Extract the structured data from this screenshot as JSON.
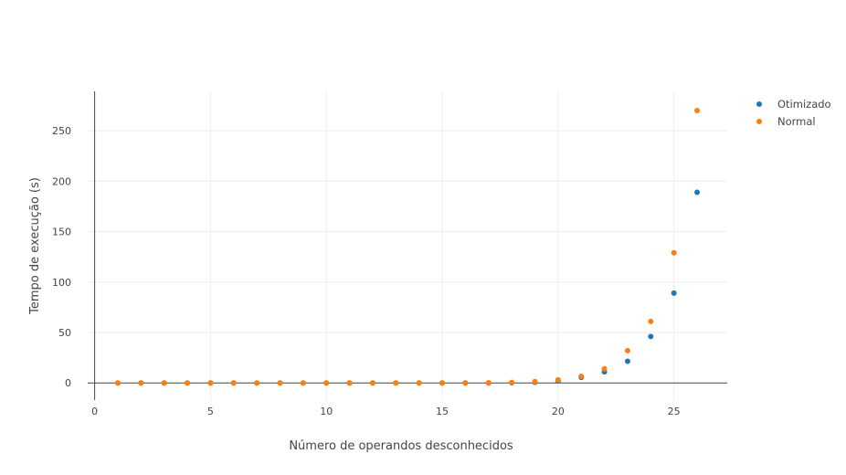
{
  "chart_data": {
    "type": "scatter",
    "title": "",
    "xlabel": "Número de operandos desconhecidos",
    "ylabel": "Tempo de execução (s)",
    "xlim": [
      -0.3,
      27.3
    ],
    "ylim": [
      -17,
      289
    ],
    "xticks": [
      0,
      5,
      10,
      15,
      20,
      25
    ],
    "yticks": [
      0,
      50,
      100,
      150,
      200,
      250
    ],
    "grid": true,
    "legend_position": "top-right",
    "x": [
      1,
      2,
      3,
      4,
      5,
      6,
      7,
      8,
      9,
      10,
      11,
      12,
      13,
      14,
      15,
      16,
      17,
      18,
      19,
      20,
      21,
      22,
      23,
      24,
      25,
      26
    ],
    "series": [
      {
        "name": "Otimizado",
        "color": "#1f77b4",
        "values": [
          0,
          0,
          0,
          0,
          0,
          0,
          0,
          0,
          0,
          0,
          0,
          0,
          0,
          0,
          0,
          0,
          0,
          0.2,
          0.6,
          1.9,
          5.5,
          11,
          21.5,
          46,
          89,
          189
        ]
      },
      {
        "name": "Normal",
        "color": "#ff7f0e",
        "values": [
          0,
          0,
          0,
          0,
          0,
          0,
          0,
          0,
          0,
          0,
          0,
          0,
          0,
          0,
          0,
          0,
          0.2,
          0.5,
          1.3,
          3,
          6.5,
          14,
          32,
          61,
          129,
          270
        ]
      }
    ]
  }
}
